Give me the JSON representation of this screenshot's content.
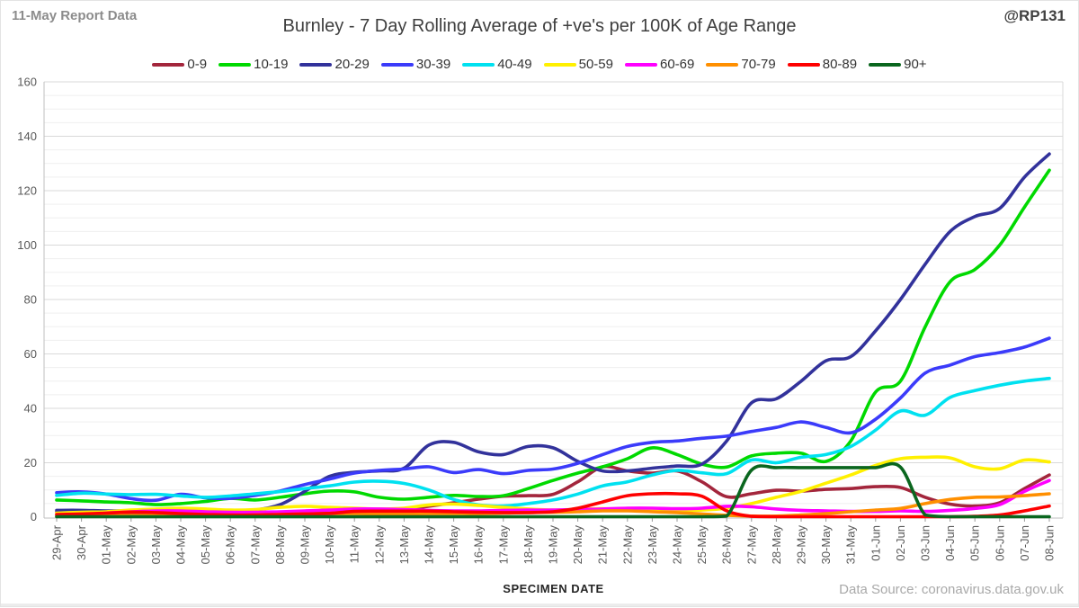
{
  "header": {
    "report_label": "11-May Report Data",
    "handle": "@RP131"
  },
  "footer": {
    "source": "Data Source: coronavirus.data.gov.uk"
  },
  "chart_data": {
    "type": "line",
    "title": "Burnley - 7 Day Rolling Average of +ve's per 100K of Age Range",
    "xlabel": "SPECIMEN DATE",
    "ylabel": "",
    "ylim": [
      0,
      160
    ],
    "y_major_step": 20,
    "y_minor_step": 5,
    "grid": true,
    "legend_position": "top",
    "x_tick_rotation": 90,
    "y_ticks": [
      0,
      20,
      40,
      60,
      80,
      100,
      120,
      140,
      160
    ],
    "x": [
      "29-Apr",
      "30-Apr",
      "01-May",
      "02-May",
      "03-May",
      "04-May",
      "05-May",
      "06-May",
      "07-May",
      "08-May",
      "09-May",
      "10-May",
      "11-May",
      "12-May",
      "13-May",
      "14-May",
      "15-May",
      "16-May",
      "17-May",
      "18-May",
      "19-May",
      "20-May",
      "21-May",
      "22-May",
      "23-May",
      "24-May",
      "25-May",
      "26-May",
      "27-May",
      "28-May",
      "29-May",
      "30-May",
      "31-May",
      "01-Jun",
      "02-Jun",
      "03-Jun",
      "04-Jun",
      "05-Jun",
      "06-Jun",
      "07-Jun",
      "08-Jun"
    ],
    "series": [
      {
        "name": "0-9",
        "color": "#A3263C",
        "values": [
          2,
          1.8,
          1.6,
          1.5,
          1.3,
          1.3,
          1.3,
          1.3,
          1.5,
          1.7,
          1.7,
          1.5,
          1.5,
          2,
          2.7,
          4,
          5.3,
          6.6,
          7.7,
          7.9,
          8.4,
          13,
          18.5,
          17,
          16.2,
          17,
          13,
          7.5,
          8.6,
          9.9,
          9.6,
          10.2,
          10.5,
          11.2,
          10.9,
          7.3,
          4.8,
          4.1,
          5.3,
          10.5,
          15.5
        ]
      },
      {
        "name": "10-19",
        "color": "#00D900",
        "values": [
          6.3,
          6,
          5.6,
          5.3,
          4.6,
          5,
          5.8,
          6.9,
          6.3,
          7.3,
          8.6,
          9.6,
          9.3,
          7.3,
          6.6,
          7.3,
          8,
          7.6,
          7.9,
          10.5,
          13.5,
          16.2,
          18.5,
          21.5,
          25.5,
          23,
          19.5,
          18.4,
          22.5,
          23.5,
          23.5,
          20.5,
          28,
          46,
          50,
          70,
          86.5,
          91,
          100,
          114,
          127.5
        ]
      },
      {
        "name": "20-29",
        "color": "#32329B",
        "values": [
          2.5,
          2.5,
          2.3,
          2.3,
          2.3,
          2.3,
          2.3,
          2.3,
          2.6,
          4.6,
          9.5,
          15,
          16.5,
          17,
          18,
          26.5,
          27.5,
          24,
          23,
          26,
          25.5,
          20.5,
          17,
          17,
          18,
          18.8,
          19.5,
          28,
          42,
          43.5,
          50,
          57.5,
          59,
          68.5,
          80,
          93,
          105,
          110.5,
          113.5,
          125,
          133.5
        ]
      },
      {
        "name": "30-39",
        "color": "#3B3BFA",
        "values": [
          9,
          9.3,
          8.5,
          6.8,
          6.2,
          8.4,
          7.1,
          6.9,
          8,
          9.6,
          12,
          14,
          16.2,
          17.2,
          17.7,
          18.5,
          16.4,
          17.5,
          16,
          17.2,
          17.7,
          19.8,
          23,
          26,
          27.5,
          28,
          29,
          29.8,
          31.5,
          33,
          35,
          33,
          31,
          36,
          43.8,
          53,
          55.9,
          59,
          60.5,
          62.5,
          65.8
        ]
      },
      {
        "name": "40-49",
        "color": "#00E1F0",
        "values": [
          8,
          8.8,
          8.5,
          8.3,
          8.4,
          7.8,
          7.3,
          7.8,
          8.6,
          9.4,
          10.5,
          11.5,
          12.9,
          13.2,
          12.4,
          10,
          6.5,
          4.5,
          4.1,
          5,
          6.3,
          8.5,
          11.5,
          13,
          15.5,
          17.2,
          16.3,
          16,
          21,
          20,
          22,
          23,
          26,
          32,
          39,
          37.5,
          44,
          46.5,
          48.5,
          50,
          51
        ]
      },
      {
        "name": "50-59",
        "color": "#FFF000",
        "values": [
          1.5,
          1.8,
          2,
          2.6,
          3,
          3.3,
          3,
          2.6,
          2.8,
          3.6,
          4,
          3.6,
          3.3,
          3,
          3.3,
          4.5,
          4.8,
          4.3,
          3.6,
          3,
          2.6,
          2.8,
          3.1,
          2.5,
          2.3,
          2.6,
          2.6,
          3.3,
          5,
          7.3,
          9.5,
          12.5,
          15.5,
          19,
          21.5,
          22,
          21.8,
          18.5,
          17.8,
          21,
          20.3
        ]
      },
      {
        "name": "60-69",
        "color": "#FF00FF",
        "values": [
          0.8,
          1,
          1.5,
          2,
          2.3,
          2.3,
          2,
          1.8,
          1.8,
          2,
          2.3,
          2.6,
          3,
          3,
          2.8,
          2.5,
          2.3,
          2.3,
          2.5,
          2.6,
          2.6,
          2.8,
          3,
          3.3,
          3.3,
          3.1,
          3.3,
          4,
          3.8,
          3,
          2.5,
          2.3,
          2.1,
          2.1,
          2.3,
          2.1,
          2.5,
          3.2,
          4.6,
          9.5,
          13.5
        ]
      },
      {
        "name": "70-79",
        "color": "#FF8F00",
        "values": [
          0.4,
          0.4,
          0.5,
          0.6,
          0.6,
          0.5,
          0.5,
          0.6,
          0.8,
          1,
          1.2,
          1.3,
          1.3,
          1.2,
          1.2,
          1.3,
          1.3,
          1.3,
          1.5,
          1.7,
          1.8,
          2,
          2.3,
          2.3,
          2,
          1.7,
          1.2,
          0.7,
          0.4,
          0.4,
          0.8,
          1.3,
          2,
          2.6,
          3.2,
          5,
          6.5,
          7.3,
          7.4,
          7.9,
          8.6
        ]
      },
      {
        "name": "80-89",
        "color": "#FE0000",
        "values": [
          1,
          1.2,
          1.5,
          1.9,
          1.7,
          1.3,
          1,
          0.8,
          0.8,
          1,
          1.2,
          1.4,
          2.1,
          2.2,
          2.2,
          2.2,
          2,
          1.8,
          1.7,
          1.7,
          2,
          3.3,
          5.6,
          7.9,
          8.6,
          8.6,
          7.7,
          2.3,
          0.3,
          0.15,
          0.15,
          0.15,
          0.15,
          0.15,
          0.15,
          0.15,
          0.15,
          0.3,
          0.8,
          2.3,
          4.1
        ]
      },
      {
        "name": "90+",
        "color": "#0A661E",
        "values": [
          0.15,
          0.15,
          0.15,
          0.15,
          0.15,
          0.15,
          0.15,
          0.15,
          0.15,
          0.15,
          0.15,
          0.15,
          0.15,
          0.15,
          0.15,
          0.15,
          0.15,
          0.15,
          0.15,
          0.15,
          0.15,
          0.15,
          0.15,
          0.15,
          0.15,
          0.15,
          0.15,
          0.4,
          17.3,
          18.2,
          18.2,
          18.2,
          18.2,
          18.2,
          18.4,
          0.8,
          0.15,
          0.15,
          0.15,
          0.15,
          0.15
        ]
      }
    ]
  }
}
